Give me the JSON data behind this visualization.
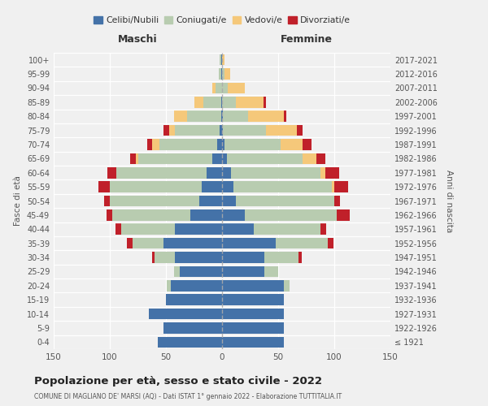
{
  "age_groups": [
    "100+",
    "95-99",
    "90-94",
    "85-89",
    "80-84",
    "75-79",
    "70-74",
    "65-69",
    "60-64",
    "55-59",
    "50-54",
    "45-49",
    "40-44",
    "35-39",
    "30-34",
    "25-29",
    "20-24",
    "15-19",
    "10-14",
    "5-9",
    "0-4"
  ],
  "birth_years": [
    "≤ 1921",
    "1922-1926",
    "1927-1931",
    "1932-1936",
    "1937-1941",
    "1942-1946",
    "1947-1951",
    "1952-1956",
    "1957-1961",
    "1962-1966",
    "1967-1971",
    "1972-1976",
    "1977-1981",
    "1982-1986",
    "1987-1991",
    "1992-1996",
    "1997-2001",
    "2002-2006",
    "2007-2011",
    "2012-2016",
    "2017-2021"
  ],
  "maschi": {
    "celibi": [
      1,
      1,
      0,
      1,
      1,
      2,
      4,
      9,
      14,
      18,
      20,
      28,
      42,
      52,
      42,
      38,
      46,
      50,
      65,
      52,
      57
    ],
    "coniugati": [
      1,
      2,
      6,
      16,
      30,
      40,
      52,
      66,
      80,
      82,
      80,
      70,
      48,
      28,
      18,
      5,
      3,
      0,
      0,
      0,
      0
    ],
    "vedovi": [
      0,
      0,
      3,
      8,
      12,
      5,
      6,
      2,
      0,
      0,
      0,
      0,
      0,
      0,
      0,
      0,
      0,
      0,
      0,
      0,
      0
    ],
    "divorziati": [
      0,
      0,
      0,
      0,
      0,
      5,
      5,
      5,
      8,
      10,
      5,
      5,
      5,
      5,
      2,
      0,
      0,
      0,
      0,
      0,
      0
    ]
  },
  "femmine": {
    "nubili": [
      0,
      0,
      0,
      0,
      1,
      1,
      2,
      4,
      8,
      10,
      12,
      20,
      28,
      48,
      38,
      38,
      55,
      55,
      55,
      55,
      55
    ],
    "coniugate": [
      0,
      2,
      5,
      12,
      22,
      38,
      50,
      68,
      80,
      88,
      88,
      82,
      60,
      46,
      30,
      12,
      5,
      0,
      0,
      0,
      0
    ],
    "vedove": [
      2,
      5,
      15,
      25,
      32,
      28,
      20,
      12,
      4,
      2,
      0,
      0,
      0,
      0,
      0,
      0,
      0,
      0,
      0,
      0,
      0
    ],
    "divorziate": [
      0,
      0,
      0,
      2,
      2,
      5,
      8,
      8,
      12,
      12,
      5,
      12,
      5,
      5,
      3,
      0,
      0,
      0,
      0,
      0,
      0
    ]
  },
  "colors": {
    "celibi": "#4472a8",
    "coniugati": "#b8ccb0",
    "vedovi": "#f5c87a",
    "divorziati": "#c0202a"
  },
  "xlim": 150,
  "title": "Popolazione per età, sesso e stato civile - 2022",
  "subtitle": "COMUNE DI MAGLIANO DE' MARSI (AQ) - Dati ISTAT 1° gennaio 2022 - Elaborazione TUTTITALIA.IT",
  "xlabel_left": "Maschi",
  "xlabel_right": "Femmine",
  "ylabel": "Fasce di età",
  "ylabel_right": "Anni di nascita",
  "legend_labels": [
    "Celibi/Nubili",
    "Coniugati/e",
    "Vedovi/e",
    "Divorziati/e"
  ],
  "background_color": "#f0f0f0"
}
